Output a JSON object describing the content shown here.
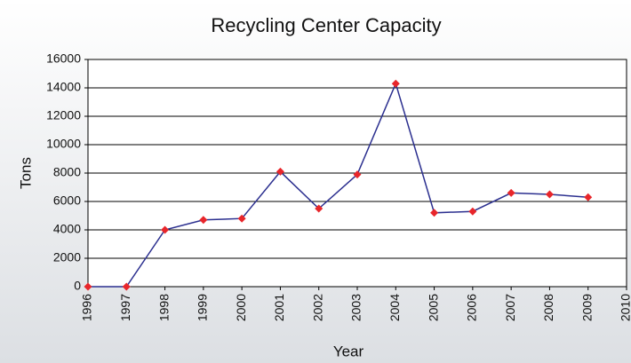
{
  "chart_data": {
    "type": "line",
    "title": "Recycling Center Capacity",
    "x_label": "Year",
    "y_label": "Tons",
    "x": [
      1996,
      1997,
      1998,
      1999,
      2000,
      2001,
      2002,
      2003,
      2004,
      2005,
      2006,
      2007,
      2008,
      2009
    ],
    "series": [
      {
        "name": "Tons",
        "color": "#2b2f8f",
        "marker_color": "#e8262b",
        "values": [
          0,
          0,
          4000,
          4700,
          4800,
          8100,
          5500,
          7900,
          14300,
          5200,
          5300,
          6600,
          6500,
          6300
        ]
      }
    ],
    "xlim": [
      1996,
      2010
    ],
    "xticks": [
      1996,
      1997,
      1998,
      1999,
      2000,
      2001,
      2002,
      2003,
      2004,
      2005,
      2006,
      2007,
      2008,
      2009,
      2010
    ],
    "ylim": [
      0,
      16000
    ],
    "yticks": [
      0,
      2000,
      4000,
      6000,
      8000,
      10000,
      12000,
      14000,
      16000
    ],
    "grid": true
  }
}
